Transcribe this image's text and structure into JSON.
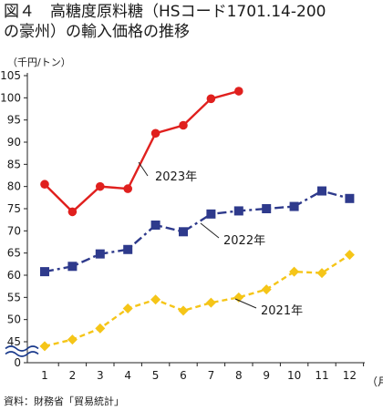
{
  "page": {
    "title": "図４　高糖度原料糖（HSコード1701.14-200\nの豪州）の輸入価格の推移",
    "unit_label": "（千円/トン）",
    "source": "資料：財務省「貿易統計」"
  },
  "chart_data": {
    "type": "line",
    "title": "図４　高糖度原料糖（HSコード1701.14-200の豪州）の輸入価格の推移",
    "ylabel": "（千円/トン）",
    "xlabel": "（月）",
    "x": [
      1,
      2,
      3,
      4,
      5,
      6,
      7,
      8,
      9,
      10,
      11,
      12
    ],
    "x_tick_labels": [
      "1",
      "2",
      "3",
      "4",
      "5",
      "6",
      "7",
      "8",
      "9",
      "10",
      "11",
      "12"
    ],
    "x_unit": "（月）",
    "y_ticks": [
      0,
      45,
      50,
      55,
      60,
      65,
      70,
      75,
      80,
      85,
      90,
      95,
      100,
      105
    ],
    "y_axis_break": [
      0,
      45
    ],
    "ylim": [
      45,
      105
    ],
    "grid": false,
    "series": [
      {
        "name": "2021年",
        "color": "#f5c518",
        "line_style": "dashed",
        "marker": "diamond",
        "values": [
          44.0,
          45.5,
          48.0,
          52.5,
          54.5,
          52.0,
          53.8,
          55.0,
          56.8,
          60.8,
          60.5,
          64.6
        ]
      },
      {
        "name": "2022年",
        "color": "#2e3a8c",
        "line_style": "dashdot",
        "marker": "square",
        "values": [
          60.8,
          62.0,
          64.8,
          65.8,
          71.3,
          69.8,
          73.8,
          74.5,
          75.0,
          75.5,
          79.0,
          77.3
        ]
      },
      {
        "name": "2023年",
        "color": "#e0201e",
        "line_style": "solid",
        "marker": "circle",
        "values": [
          80.5,
          74.3,
          80.0,
          79.5,
          92.0,
          93.8,
          99.8,
          101.5,
          null,
          null,
          null,
          null
        ]
      }
    ]
  }
}
